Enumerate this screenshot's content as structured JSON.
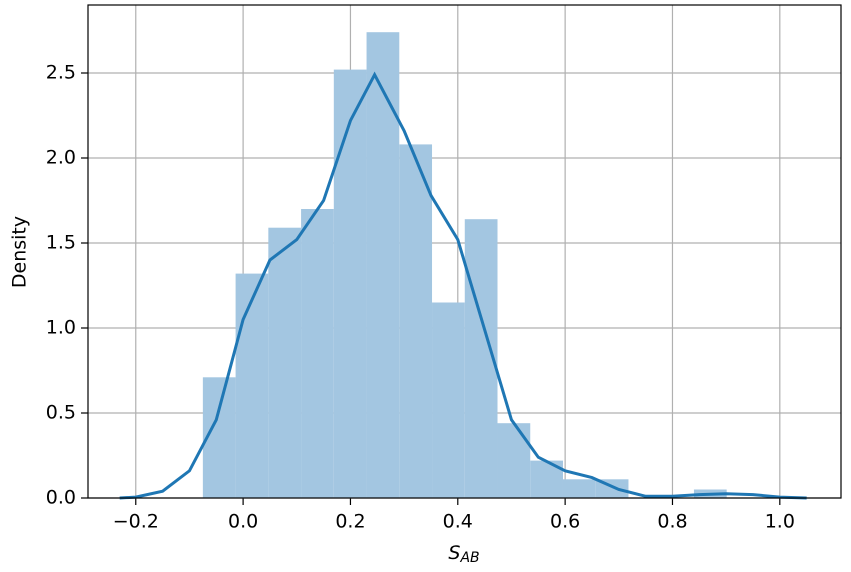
{
  "chart_data": {
    "type": "histogram",
    "bins": [
      -0.075,
      -0.014,
      0.047,
      0.108,
      0.169,
      0.23,
      0.291,
      0.352,
      0.413,
      0.474,
      0.535,
      0.596,
      0.657,
      0.718,
      0.779,
      0.84,
      0.901
    ],
    "values": [
      0.71,
      1.32,
      1.59,
      1.7,
      2.52,
      2.74,
      2.08,
      1.15,
      1.64,
      0.44,
      0.22,
      0.11,
      0.11,
      0,
      0,
      0.05
    ],
    "color": "#a3c6e1",
    "kde": {
      "color": "#1f77b4",
      "x": [
        -0.23,
        -0.2,
        -0.15,
        -0.1,
        -0.05,
        0.0,
        0.05,
        0.1,
        0.15,
        0.2,
        0.245,
        0.3,
        0.35,
        0.4,
        0.45,
        0.5,
        0.55,
        0.6,
        0.65,
        0.7,
        0.75,
        0.8,
        0.85,
        0.9,
        0.95,
        1.0,
        1.05
      ],
      "values": [
        0,
        0.005,
        0.04,
        0.16,
        0.46,
        1.05,
        1.4,
        1.52,
        1.75,
        2.22,
        2.49,
        2.16,
        1.78,
        1.52,
        0.99,
        0.46,
        0.24,
        0.16,
        0.12,
        0.05,
        0.01,
        0.01,
        0.02,
        0.025,
        0.02,
        0.005,
        0
      ]
    },
    "x_label": "S",
    "x_label_subscript": "AB",
    "y_label": "Density",
    "xlim": [
      -0.289,
      1.114
    ],
    "ylim": [
      0,
      2.9
    ],
    "xticks": [
      {
        "value": -0.2,
        "label": "−0.2"
      },
      {
        "value": 0,
        "label": "0.0"
      },
      0.2,
      0.4,
      0.6,
      0.8,
      {
        "value": 1,
        "label": "1.0"
      }
    ],
    "yticks": [
      {
        "value": 0,
        "label": "0.0"
      },
      0.5,
      {
        "value": 1,
        "label": "1.0"
      },
      1.5,
      {
        "value": 2,
        "label": "2.0"
      },
      2.5
    ],
    "grid": true
  }
}
